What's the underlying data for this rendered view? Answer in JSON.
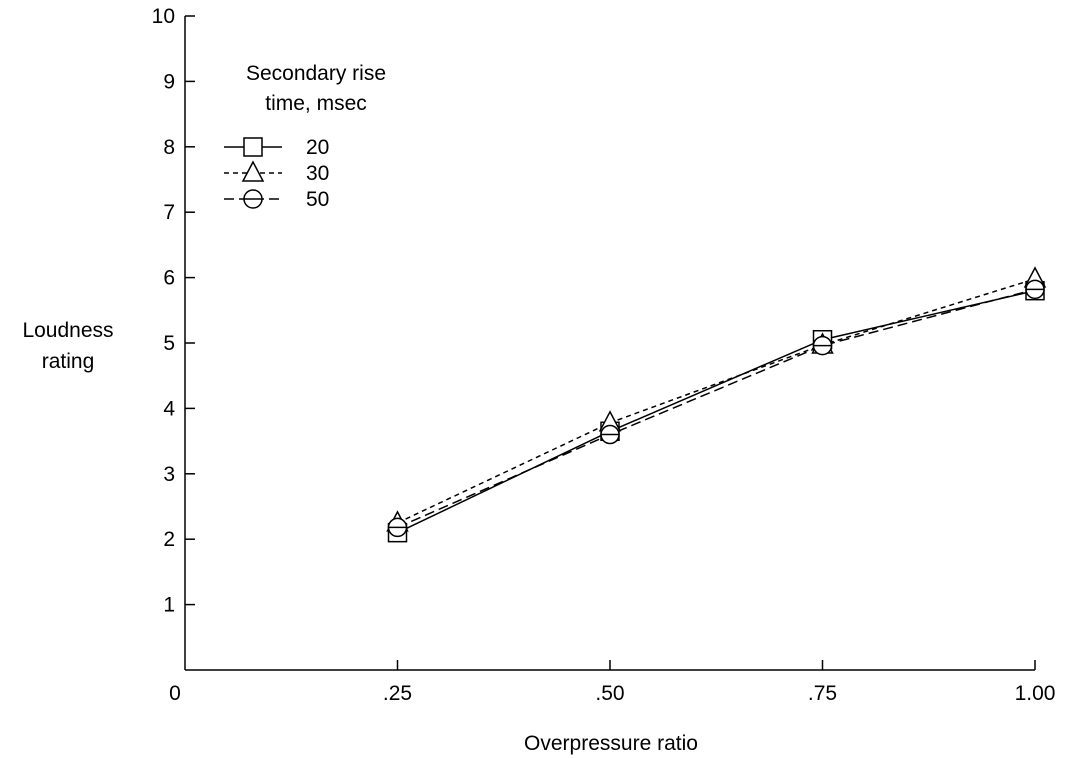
{
  "chart_data": {
    "type": "line",
    "title": "",
    "xlabel": "Overpressure ratio",
    "ylabel": [
      "Loudness",
      "rating"
    ],
    "xlim": [
      0,
      1.0
    ],
    "ylim": [
      0,
      10
    ],
    "x_ticks": [
      0,
      0.25,
      0.5,
      0.75,
      1.0
    ],
    "x_tick_labels": [
      "0",
      ".25",
      ".50",
      ".75",
      "1.00"
    ],
    "y_ticks": [
      1,
      2,
      3,
      4,
      5,
      6,
      7,
      8,
      9,
      10
    ],
    "y_tick_labels": [
      "1",
      "2",
      "3",
      "4",
      "5",
      "6",
      "7",
      "8",
      "9",
      "10"
    ],
    "x": [
      0.25,
      0.5,
      0.75,
      1.0
    ],
    "legend": {
      "title": [
        "Secondary rise",
        "time, msec"
      ],
      "placement": "top-left"
    },
    "grid": false,
    "series": [
      {
        "name": "20",
        "marker": "square",
        "dash": "solid",
        "values": [
          2.1,
          3.65,
          5.05,
          5.8
        ]
      },
      {
        "name": "30",
        "marker": "triangle",
        "dash": "dashed-short",
        "values": [
          2.25,
          3.78,
          4.97,
          5.98
        ]
      },
      {
        "name": "50",
        "marker": "circle",
        "dash": "dashed-long",
        "values": [
          2.18,
          3.6,
          4.96,
          5.82
        ]
      }
    ],
    "colors": {
      "line": "#000000",
      "background": "#ffffff"
    }
  }
}
